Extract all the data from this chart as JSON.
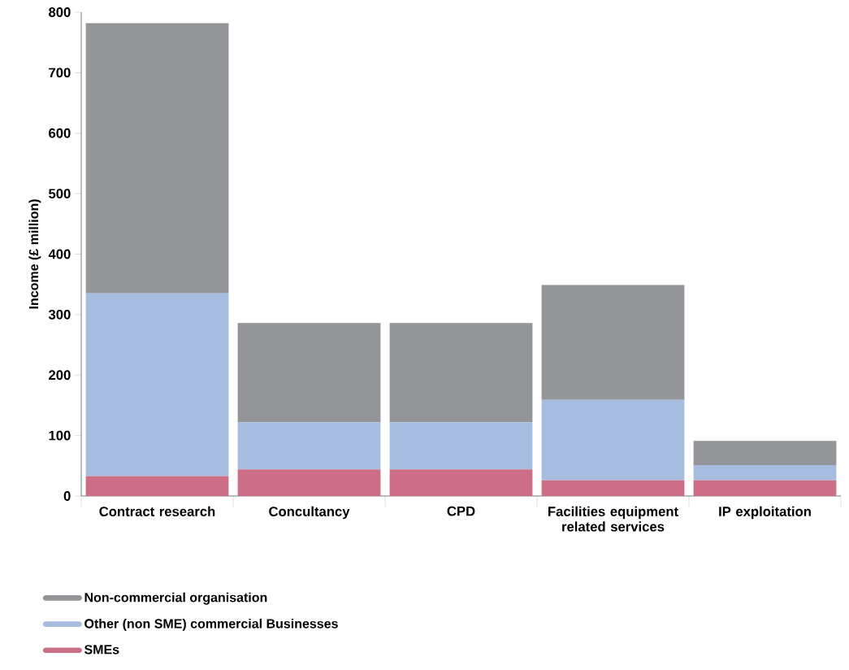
{
  "chart_data": {
    "type": "bar",
    "stacked": true,
    "ylabel": "Income (£ million)",
    "categories": [
      "Contract research",
      "Concultancy",
      "CPD",
      "Facilities equipment related services",
      "IP exploitation"
    ],
    "series": [
      {
        "name": "SMEs",
        "color": "#cc6e85",
        "values": [
          33,
          44,
          44,
          26,
          26
        ]
      },
      {
        "name": "Other (non SME) commercial Businesses",
        "color": "#a7bde0",
        "values": [
          302,
          78,
          78,
          133,
          25
        ]
      },
      {
        "name": "Non-commercial organisation",
        "color": "#939598",
        "values": [
          447,
          164,
          164,
          190,
          40
        ]
      }
    ],
    "ylim": [
      0,
      800
    ],
    "yticks": [
      0,
      100,
      200,
      300,
      400,
      500,
      600,
      700,
      800
    ],
    "legend": "bottom",
    "grid": false
  }
}
